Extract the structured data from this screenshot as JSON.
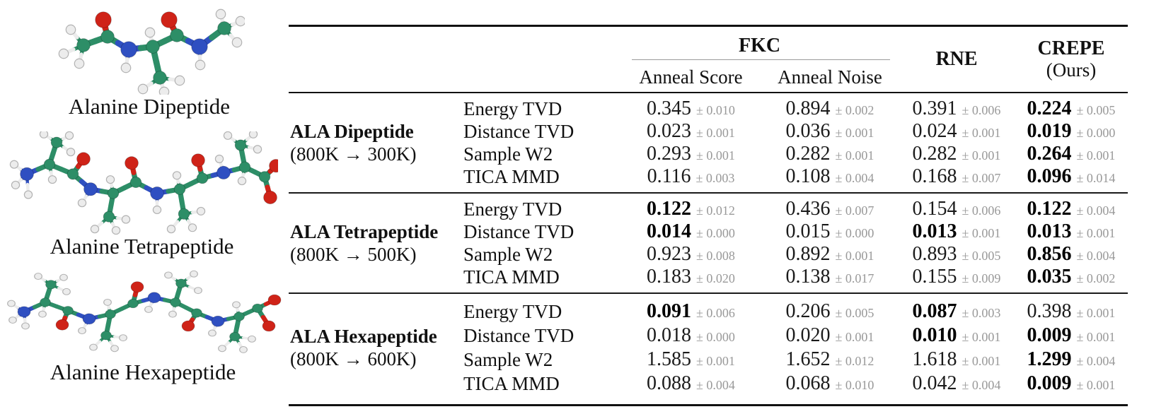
{
  "figures": [
    {
      "id": "alanine-dipeptide",
      "caption": "Alanine Dipeptide",
      "scale": 1.2,
      "atoms": [
        [
          42,
          52,
          "C"
        ],
        [
          24,
          30,
          "H"
        ],
        [
          14,
          64,
          "H"
        ],
        [
          36,
          78,
          "H"
        ],
        [
          76,
          40,
          "C"
        ],
        [
          70,
          16,
          "O"
        ],
        [
          106,
          58,
          "N"
        ],
        [
          102,
          84,
          "H"
        ],
        [
          140,
          54,
          "C"
        ],
        [
          136,
          34,
          "H"
        ],
        [
          150,
          98,
          "C"
        ],
        [
          126,
          114,
          "H"
        ],
        [
          156,
          118,
          "H"
        ],
        [
          178,
          102,
          "H"
        ],
        [
          174,
          38,
          "C"
        ],
        [
          163,
          16,
          "O"
        ],
        [
          206,
          54,
          "N"
        ],
        [
          207,
          80,
          "H"
        ],
        [
          241,
          28,
          "C"
        ],
        [
          236,
          8,
          "H"
        ],
        [
          264,
          18,
          "H"
        ],
        [
          259,
          48,
          "H"
        ]
      ],
      "bonds": [
        [
          0,
          1
        ],
        [
          0,
          2
        ],
        [
          0,
          3
        ],
        [
          6,
          7
        ],
        [
          8,
          9
        ],
        [
          10,
          11
        ],
        [
          10,
          12
        ],
        [
          10,
          13
        ],
        [
          16,
          17
        ],
        [
          18,
          19
        ],
        [
          18,
          20
        ],
        [
          18,
          21
        ],
        [
          0,
          4
        ],
        [
          4,
          5
        ],
        [
          4,
          6
        ],
        [
          6,
          8
        ],
        [
          8,
          10
        ],
        [
          8,
          14
        ],
        [
          14,
          15
        ],
        [
          14,
          16
        ],
        [
          16,
          18
        ]
      ]
    },
    {
      "id": "alanine-tetrapeptide",
      "caption": "Alanine Tetrapeptide",
      "scale": 1.0,
      "atoms": [
        [
          30,
          62,
          "N"
        ],
        [
          12,
          48,
          "H"
        ],
        [
          14,
          78,
          "H"
        ],
        [
          32,
          92,
          "H"
        ],
        [
          62,
          48,
          "C"
        ],
        [
          72,
          16,
          "C"
        ],
        [
          54,
          4,
          "H"
        ],
        [
          90,
          6,
          "H"
        ],
        [
          92,
          30,
          "H"
        ],
        [
          66,
          70,
          "H"
        ],
        [
          95,
          62,
          "C"
        ],
        [
          110,
          40,
          "O"
        ],
        [
          120,
          84,
          "N"
        ],
        [
          108,
          104,
          "H"
        ],
        [
          152,
          90,
          "C"
        ],
        [
          148,
          70,
          "H"
        ],
        [
          146,
          124,
          "C"
        ],
        [
          126,
          142,
          "H"
        ],
        [
          156,
          144,
          "H"
        ],
        [
          170,
          128,
          "H"
        ],
        [
          184,
          74,
          "C"
        ],
        [
          178,
          46,
          "O"
        ],
        [
          214,
          90,
          "N"
        ],
        [
          214,
          114,
          "H"
        ],
        [
          246,
          84,
          "C"
        ],
        [
          242,
          64,
          "H"
        ],
        [
          252,
          120,
          "C"
        ],
        [
          234,
          142,
          "H"
        ],
        [
          264,
          140,
          "H"
        ],
        [
          276,
          116,
          "H"
        ],
        [
          278,
          68,
          "C"
        ],
        [
          272,
          42,
          "O"
        ],
        [
          308,
          60,
          "N"
        ],
        [
          302,
          40,
          "H"
        ],
        [
          338,
          52,
          "C"
        ],
        [
          334,
          72,
          "H"
        ],
        [
          332,
          20,
          "C"
        ],
        [
          314,
          6,
          "H"
        ],
        [
          350,
          4,
          "H"
        ],
        [
          356,
          26,
          "H"
        ],
        [
          366,
          66,
          "C"
        ],
        [
          382,
          50,
          "O"
        ],
        [
          374,
          96,
          "O"
        ]
      ],
      "bonds": [
        [
          0,
          1
        ],
        [
          0,
          2
        ],
        [
          0,
          3
        ],
        [
          5,
          6
        ],
        [
          5,
          7
        ],
        [
          5,
          8
        ],
        [
          4,
          9
        ],
        [
          12,
          13
        ],
        [
          14,
          15
        ],
        [
          16,
          17
        ],
        [
          16,
          18
        ],
        [
          16,
          19
        ],
        [
          22,
          23
        ],
        [
          24,
          25
        ],
        [
          26,
          27
        ],
        [
          26,
          28
        ],
        [
          26,
          29
        ],
        [
          32,
          33
        ],
        [
          34,
          35
        ],
        [
          36,
          37
        ],
        [
          36,
          38
        ],
        [
          36,
          39
        ],
        [
          0,
          4
        ],
        [
          4,
          5
        ],
        [
          4,
          10
        ],
        [
          10,
          11
        ],
        [
          10,
          12
        ],
        [
          12,
          14
        ],
        [
          14,
          16
        ],
        [
          14,
          20
        ],
        [
          20,
          21
        ],
        [
          20,
          22
        ],
        [
          22,
          24
        ],
        [
          24,
          26
        ],
        [
          24,
          30
        ],
        [
          30,
          31
        ],
        [
          30,
          32
        ],
        [
          32,
          34
        ],
        [
          34,
          36
        ],
        [
          34,
          40
        ],
        [
          40,
          41
        ],
        [
          40,
          42
        ]
      ]
    },
    {
      "id": "alanine-hexapeptide",
      "caption": "Alanine Hexapeptide",
      "scale": 0.95,
      "atoms": [
        [
          32,
          78,
          "N"
        ],
        [
          14,
          64,
          "H"
        ],
        [
          16,
          92,
          "H"
        ],
        [
          34,
          102,
          "H"
        ],
        [
          62,
          62,
          "C"
        ],
        [
          58,
          82,
          "H"
        ],
        [
          70,
          32,
          "C"
        ],
        [
          52,
          18,
          "H"
        ],
        [
          88,
          20,
          "H"
        ],
        [
          92,
          44,
          "H"
        ],
        [
          94,
          76,
          "C"
        ],
        [
          86,
          100,
          "O"
        ],
        [
          124,
          90,
          "N"
        ],
        [
          114,
          110,
          "H"
        ],
        [
          154,
          82,
          "C"
        ],
        [
          150,
          62,
          "H"
        ],
        [
          148,
          118,
          "C"
        ],
        [
          130,
          138,
          "H"
        ],
        [
          160,
          140,
          "H"
        ],
        [
          172,
          122,
          "H"
        ],
        [
          186,
          64,
          "C"
        ],
        [
          192,
          36,
          "O"
        ],
        [
          216,
          54,
          "N"
        ],
        [
          208,
          74,
          "H"
        ],
        [
          246,
          62,
          "C"
        ],
        [
          242,
          82,
          "H"
        ],
        [
          254,
          30,
          "C"
        ],
        [
          236,
          16,
          "H"
        ],
        [
          272,
          14,
          "H"
        ],
        [
          278,
          42,
          "H"
        ],
        [
          276,
          80,
          "C"
        ],
        [
          264,
          102,
          "O"
        ],
        [
          306,
          94,
          "N"
        ],
        [
          298,
          114,
          "H"
        ],
        [
          336,
          86,
          "C"
        ],
        [
          332,
          66,
          "H"
        ],
        [
          330,
          120,
          "C"
        ],
        [
          312,
          140,
          "H"
        ],
        [
          342,
          142,
          "H"
        ],
        [
          354,
          124,
          "H"
        ],
        [
          362,
          72,
          "C"
        ],
        [
          386,
          58,
          "O"
        ],
        [
          378,
          102,
          "O"
        ]
      ],
      "bonds": [
        [
          0,
          1
        ],
        [
          0,
          2
        ],
        [
          0,
          3
        ],
        [
          4,
          5
        ],
        [
          6,
          7
        ],
        [
          6,
          8
        ],
        [
          6,
          9
        ],
        [
          12,
          13
        ],
        [
          14,
          15
        ],
        [
          16,
          17
        ],
        [
          16,
          18
        ],
        [
          16,
          19
        ],
        [
          22,
          23
        ],
        [
          24,
          25
        ],
        [
          26,
          27
        ],
        [
          26,
          28
        ],
        [
          26,
          29
        ],
        [
          32,
          33
        ],
        [
          34,
          35
        ],
        [
          36,
          37
        ],
        [
          36,
          38
        ],
        [
          36,
          39
        ],
        [
          0,
          4
        ],
        [
          4,
          6
        ],
        [
          4,
          10
        ],
        [
          10,
          11
        ],
        [
          10,
          12
        ],
        [
          12,
          14
        ],
        [
          14,
          16
        ],
        [
          14,
          20
        ],
        [
          20,
          21
        ],
        [
          20,
          22
        ],
        [
          22,
          24
        ],
        [
          24,
          26
        ],
        [
          24,
          30
        ],
        [
          30,
          31
        ],
        [
          30,
          32
        ],
        [
          32,
          34
        ],
        [
          34,
          36
        ],
        [
          34,
          40
        ],
        [
          40,
          41
        ],
        [
          40,
          42
        ]
      ]
    }
  ],
  "molecule_colors": {
    "C": "#2d8e67",
    "N": "#2f4fc1",
    "O": "#cf2318",
    "H": "#ececec",
    "H_stroke": "#b2b2b2"
  },
  "table": {
    "header": {
      "fkc": "FKC",
      "anneal_score": "Anneal Score",
      "anneal_noise": "Anneal Noise",
      "rne": "RNE",
      "crepe": "CREPE",
      "crepe_sub": "(Ours)"
    },
    "columns": [
      "Anneal Score",
      "Anneal Noise",
      "RNE",
      "CREPE (Ours)"
    ],
    "groups": [
      {
        "name": "ALA Dipeptide",
        "temp": "(800K → 300K)",
        "rows": [
          {
            "metric": "Energy TVD",
            "cells": [
              [
                "0.345",
                "± 0.010",
                0
              ],
              [
                "0.894",
                "± 0.002",
                0
              ],
              [
                "0.391",
                "± 0.006",
                0
              ],
              [
                "0.224",
                "± 0.005",
                1
              ]
            ]
          },
          {
            "metric": "Distance TVD",
            "cells": [
              [
                "0.023",
                "± 0.001",
                0
              ],
              [
                "0.036",
                "± 0.001",
                0
              ],
              [
                "0.024",
                "± 0.001",
                0
              ],
              [
                "0.019",
                "± 0.000",
                1
              ]
            ]
          },
          {
            "metric": "Sample W2",
            "cells": [
              [
                "0.293",
                "± 0.001",
                0
              ],
              [
                "0.282",
                "± 0.001",
                0
              ],
              [
                "0.282",
                "± 0.001",
                0
              ],
              [
                "0.264",
                "± 0.001",
                1
              ]
            ]
          },
          {
            "metric": "TICA MMD",
            "cells": [
              [
                "0.116",
                "± 0.003",
                0
              ],
              [
                "0.108",
                "± 0.004",
                0
              ],
              [
                "0.168",
                "± 0.007",
                0
              ],
              [
                "0.096",
                "± 0.014",
                1
              ]
            ]
          }
        ]
      },
      {
        "name": "ALA Tetrapeptide",
        "temp": "(800K → 500K)",
        "rows": [
          {
            "metric": "Energy TVD",
            "cells": [
              [
                "0.122",
                "± 0.012",
                1
              ],
              [
                "0.436",
                "± 0.007",
                0
              ],
              [
                "0.154",
                "± 0.006",
                0
              ],
              [
                "0.122",
                "± 0.004",
                1
              ]
            ]
          },
          {
            "metric": "Distance TVD",
            "cells": [
              [
                "0.014",
                "± 0.000",
                1
              ],
              [
                "0.015",
                "± 0.000",
                0
              ],
              [
                "0.013",
                "± 0.001",
                1
              ],
              [
                "0.013",
                "± 0.001",
                1
              ]
            ]
          },
          {
            "metric": "Sample W2",
            "cells": [
              [
                "0.923",
                "± 0.008",
                0
              ],
              [
                "0.892",
                "± 0.001",
                0
              ],
              [
                "0.893",
                "± 0.005",
                0
              ],
              [
                "0.856",
                "± 0.004",
                1
              ]
            ]
          },
          {
            "metric": "TICA MMD",
            "cells": [
              [
                "0.183",
                "± 0.020",
                0
              ],
              [
                "0.138",
                "± 0.017",
                0
              ],
              [
                "0.155",
                "± 0.009",
                0
              ],
              [
                "0.035",
                "± 0.002",
                1
              ]
            ]
          }
        ]
      },
      {
        "name": "ALA Hexapeptide",
        "temp": "(800K → 600K)",
        "rows": [
          {
            "metric": "Energy TVD",
            "cells": [
              [
                "0.091",
                "± 0.006",
                1
              ],
              [
                "0.206",
                "± 0.005",
                0
              ],
              [
                "0.087",
                "± 0.003",
                1
              ],
              [
                "0.398",
                "± 0.001",
                0
              ]
            ]
          },
          {
            "metric": "Distance TVD",
            "cells": [
              [
                "0.018",
                "± 0.000",
                0
              ],
              [
                "0.020",
                "± 0.001",
                0
              ],
              [
                "0.010",
                "± 0.001",
                1
              ],
              [
                "0.009",
                "± 0.001",
                1
              ]
            ]
          },
          {
            "metric": "Sample W2",
            "cells": [
              [
                "1.585",
                "± 0.001",
                0
              ],
              [
                "1.652",
                "± 0.012",
                0
              ],
              [
                "1.618",
                "± 0.001",
                0
              ],
              [
                "1.299",
                "± 0.004",
                1
              ]
            ]
          },
          {
            "metric": "TICA MMD",
            "cells": [
              [
                "0.088",
                "± 0.004",
                0
              ],
              [
                "0.068",
                "± 0.010",
                0
              ],
              [
                "0.042",
                "± 0.004",
                0
              ],
              [
                "0.009",
                "± 0.001",
                1
              ]
            ]
          }
        ]
      }
    ]
  }
}
